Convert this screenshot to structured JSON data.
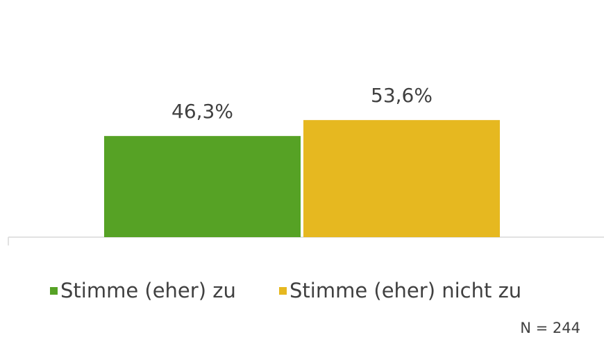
{
  "chart_data": {
    "type": "bar",
    "categories": [
      null
    ],
    "series": [
      {
        "name": "Stimme (eher) zu",
        "color": "#56a225",
        "values": [
          46.3
        ],
        "value_labels": [
          "46,3%"
        ]
      },
      {
        "name": "Stimme (eher) nicht zu",
        "color": "#e6b820",
        "values": [
          53.6
        ],
        "value_labels": [
          "53,6%"
        ]
      }
    ],
    "ylim": [
      0,
      100
    ],
    "annotations": [
      "N = 244"
    ]
  }
}
